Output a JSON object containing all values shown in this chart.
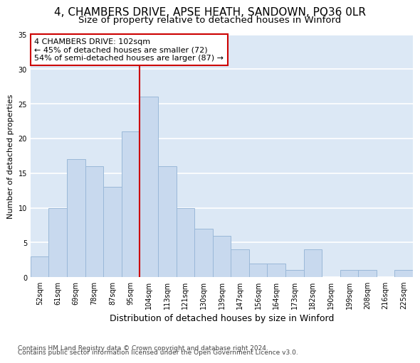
{
  "title1": "4, CHAMBERS DRIVE, APSE HEATH, SANDOWN, PO36 0LR",
  "title2": "Size of property relative to detached houses in Winford",
  "xlabel": "Distribution of detached houses by size in Winford",
  "ylabel": "Number of detached properties",
  "categories": [
    "52sqm",
    "61sqm",
    "69sqm",
    "78sqm",
    "87sqm",
    "95sqm",
    "104sqm",
    "113sqm",
    "121sqm",
    "130sqm",
    "139sqm",
    "147sqm",
    "156sqm",
    "164sqm",
    "173sqm",
    "182sqm",
    "190sqm",
    "199sqm",
    "208sqm",
    "216sqm",
    "225sqm"
  ],
  "values": [
    3,
    10,
    17,
    16,
    13,
    21,
    26,
    16,
    10,
    7,
    6,
    4,
    2,
    2,
    1,
    4,
    0,
    1,
    1,
    0,
    1
  ],
  "bar_color": "#c8d9ee",
  "bar_edge_color": "#9ab8d8",
  "red_line_index": 6,
  "annotation_line1": "4 CHAMBERS DRIVE: 102sqm",
  "annotation_line2": "← 45% of detached houses are smaller (72)",
  "annotation_line3": "54% of semi-detached houses are larger (87) →",
  "annotation_box_color": "white",
  "annotation_border_color": "#cc0000",
  "vline_color": "#cc0000",
  "footer1": "Contains HM Land Registry data © Crown copyright and database right 2024.",
  "footer2": "Contains public sector information licensed under the Open Government Licence v3.0.",
  "ylim": [
    0,
    35
  ],
  "yticks": [
    0,
    5,
    10,
    15,
    20,
    25,
    30,
    35
  ],
  "bg_color": "#dce8f5",
  "grid_color": "white",
  "title1_fontsize": 11,
  "title2_fontsize": 9.5,
  "xlabel_fontsize": 9,
  "ylabel_fontsize": 8,
  "tick_fontsize": 7,
  "annotation_fontsize": 8,
  "footer_fontsize": 6.5
}
